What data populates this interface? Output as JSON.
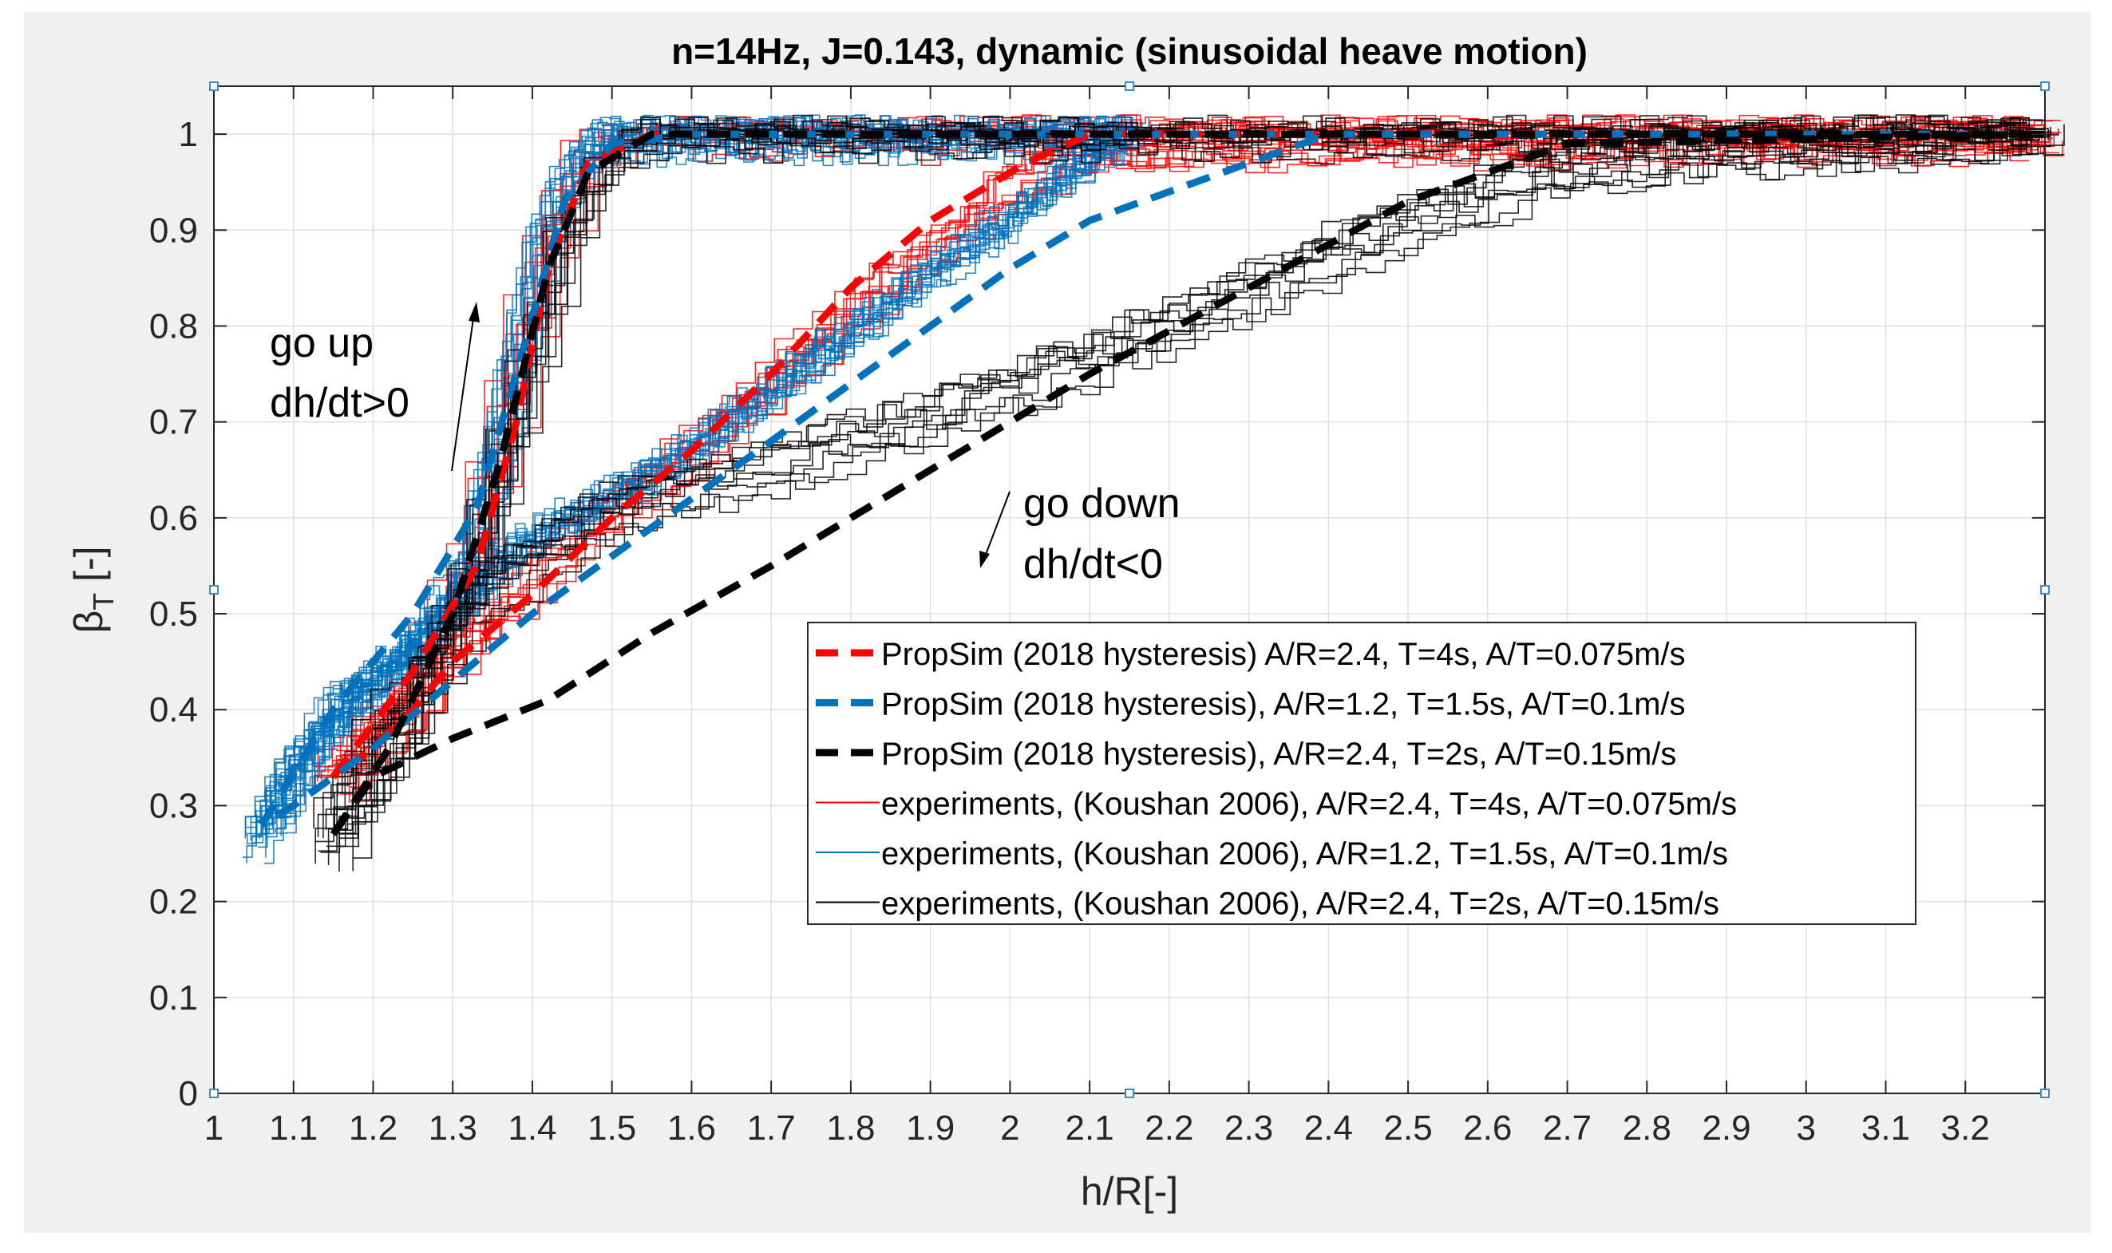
{
  "chart_data": {
    "type": "line",
    "title": "n=14Hz, J=0.143, dynamic (sinusoidal heave motion)",
    "xlabel": "h/R[-]",
    "ylabel": "βT [-]",
    "ylabel_main": "β",
    "ylabel_sub": "T",
    "ylabel_unit": " [-]",
    "xlim": [
      1.0,
      3.3
    ],
    "ylim": [
      0.0,
      1.05
    ],
    "xticks": [
      1,
      1.1,
      1.2,
      1.3,
      1.4,
      1.5,
      1.6,
      1.7,
      1.8,
      1.9,
      2,
      2.1,
      2.2,
      2.3,
      2.4,
      2.5,
      2.6,
      2.7,
      2.8,
      2.9,
      3,
      3.1,
      3.2
    ],
    "xtick_labels": [
      "1",
      "1.1",
      "1.2",
      "1.3",
      "1.4",
      "1.5",
      "1.6",
      "1.7",
      "1.8",
      "1.9",
      "2",
      "2.1",
      "2.2",
      "2.3",
      "2.4",
      "2.5",
      "2.6",
      "2.7",
      "2.8",
      "2.9",
      "3",
      "3.1",
      "3.2"
    ],
    "yticks": [
      0,
      0.1,
      0.2,
      0.3,
      0.4,
      0.5,
      0.6,
      0.7,
      0.8,
      0.9,
      1
    ],
    "ytick_labels": [
      "0",
      "0.1",
      "0.2",
      "0.3",
      "0.4",
      "0.5",
      "0.6",
      "0.7",
      "0.8",
      "0.9",
      "1"
    ],
    "grid": true,
    "legend_position": "center-right",
    "colors": {
      "red": "#ff0000",
      "blue": "#0072bd",
      "black": "#000000",
      "grid": "#dfdfdf",
      "frame_bg": "#f0f0f0"
    },
    "annotations": {
      "up_line1": "go up",
      "up_line2": "dh/dt>0",
      "down_line1": "go down",
      "down_line2": "dh/dt<0"
    },
    "series": [
      {
        "name": "PropSim (2018 hysteresis) A/R=2.4, T=4s, A/T=0.075m/s",
        "kind": "sim",
        "color": "#ff0000",
        "style": "dashed",
        "up": [
          [
            1.15,
            0.33
          ],
          [
            1.25,
            0.44
          ],
          [
            1.33,
            0.55
          ],
          [
            1.38,
            0.7
          ],
          [
            1.42,
            0.86
          ],
          [
            1.47,
            0.97
          ],
          [
            1.55,
            1.0
          ],
          [
            3.3,
            1.0
          ]
        ],
        "down": [
          [
            3.3,
            1.0
          ],
          [
            2.1,
            1.0
          ],
          [
            2.02,
            0.97
          ],
          [
            1.9,
            0.91
          ],
          [
            1.8,
            0.84
          ],
          [
            1.7,
            0.75
          ],
          [
            1.6,
            0.67
          ],
          [
            1.5,
            0.6
          ],
          [
            1.4,
            0.52
          ],
          [
            1.3,
            0.45
          ],
          [
            1.25,
            0.4
          ],
          [
            1.2,
            0.36
          ],
          [
            1.15,
            0.33
          ]
        ]
      },
      {
        "name": "PropSim (2018 hysteresis), A/R=1.2, T=1.5s, A/T=0.1m/s",
        "kind": "sim",
        "color": "#0072bd",
        "style": "dashed",
        "up": [
          [
            1.06,
            0.28
          ],
          [
            1.15,
            0.4
          ],
          [
            1.25,
            0.5
          ],
          [
            1.33,
            0.61
          ],
          [
            1.39,
            0.78
          ],
          [
            1.44,
            0.93
          ],
          [
            1.5,
            0.99
          ],
          [
            1.6,
            1.0
          ],
          [
            3.3,
            1.0
          ]
        ],
        "down": [
          [
            3.3,
            1.0
          ],
          [
            2.4,
            1.0
          ],
          [
            2.3,
            0.97
          ],
          [
            2.2,
            0.94
          ],
          [
            2.1,
            0.91
          ],
          [
            2.0,
            0.86
          ],
          [
            1.9,
            0.8
          ],
          [
            1.8,
            0.74
          ],
          [
            1.7,
            0.68
          ],
          [
            1.6,
            0.62
          ],
          [
            1.5,
            0.56
          ],
          [
            1.4,
            0.5
          ],
          [
            1.3,
            0.43
          ],
          [
            1.2,
            0.36
          ],
          [
            1.1,
            0.3
          ],
          [
            1.06,
            0.28
          ]
        ]
      },
      {
        "name": "PropSim (2018 hysteresis), A/R=2.4, T=2s, A/T=0.15m/s",
        "kind": "sim",
        "color": "#000000",
        "style": "dashed",
        "up": [
          [
            1.15,
            0.27
          ],
          [
            1.22,
            0.36
          ],
          [
            1.3,
            0.5
          ],
          [
            1.36,
            0.66
          ],
          [
            1.42,
            0.86
          ],
          [
            1.47,
            0.96
          ],
          [
            1.55,
            1.0
          ],
          [
            3.3,
            1.0
          ]
        ],
        "down": [
          [
            3.3,
            1.0
          ],
          [
            2.7,
            0.99
          ],
          [
            2.5,
            0.93
          ],
          [
            2.3,
            0.84
          ],
          [
            2.1,
            0.75
          ],
          [
            1.9,
            0.65
          ],
          [
            1.7,
            0.55
          ],
          [
            1.55,
            0.48
          ],
          [
            1.42,
            0.41
          ],
          [
            1.3,
            0.37
          ],
          [
            1.2,
            0.33
          ],
          [
            1.15,
            0.27
          ]
        ]
      },
      {
        "name": "experiments, (Koushan 2006), A/R=2.4, T=4s, A/T=0.075m/s",
        "kind": "exp",
        "color": "#ff0000",
        "style": "solid",
        "cycles": 10,
        "up": [
          [
            1.15,
            0.33
          ],
          [
            1.25,
            0.43
          ],
          [
            1.32,
            0.56
          ],
          [
            1.37,
            0.74
          ],
          [
            1.41,
            0.88
          ],
          [
            1.46,
            0.97
          ],
          [
            1.52,
            1.0
          ],
          [
            3.3,
            1.0
          ]
        ],
        "down": [
          [
            3.3,
            1.0
          ],
          [
            2.15,
            0.99
          ],
          [
            2.07,
            0.97
          ],
          [
            2.0,
            0.94
          ],
          [
            1.9,
            0.87
          ],
          [
            1.8,
            0.81
          ],
          [
            1.7,
            0.73
          ],
          [
            1.6,
            0.66
          ],
          [
            1.5,
            0.6
          ],
          [
            1.4,
            0.53
          ],
          [
            1.3,
            0.45
          ],
          [
            1.2,
            0.36
          ],
          [
            1.15,
            0.33
          ]
        ]
      },
      {
        "name": "experiments, (Koushan 2006), A/R=1.2, T=1.5s, A/T=0.1m/s",
        "kind": "exp",
        "color": "#0072bd",
        "style": "solid",
        "cycles": 16,
        "up": [
          [
            1.06,
            0.27
          ],
          [
            1.15,
            0.41
          ],
          [
            1.25,
            0.47
          ],
          [
            1.32,
            0.55
          ],
          [
            1.37,
            0.74
          ],
          [
            1.41,
            0.9
          ],
          [
            1.46,
            0.99
          ],
          [
            1.52,
            1.0
          ],
          [
            2.15,
            1.0
          ]
        ],
        "down": [
          [
            2.15,
            1.0
          ],
          [
            2.1,
            0.97
          ],
          [
            2.0,
            0.91
          ],
          [
            1.9,
            0.85
          ],
          [
            1.8,
            0.79
          ],
          [
            1.7,
            0.73
          ],
          [
            1.6,
            0.67
          ],
          [
            1.5,
            0.62
          ],
          [
            1.4,
            0.58
          ],
          [
            1.3,
            0.5
          ],
          [
            1.2,
            0.42
          ],
          [
            1.1,
            0.34
          ],
          [
            1.06,
            0.27
          ]
        ]
      },
      {
        "name": "experiments, (Koushan 2006), A/R=2.4, T=2s, A/T=0.15m/s",
        "kind": "exp",
        "color": "#000000",
        "style": "solid",
        "cycles": 10,
        "up": [
          [
            1.15,
            0.26
          ],
          [
            1.25,
            0.4
          ],
          [
            1.32,
            0.55
          ],
          [
            1.38,
            0.73
          ],
          [
            1.43,
            0.88
          ],
          [
            1.48,
            0.97
          ],
          [
            1.55,
            1.0
          ],
          [
            3.3,
            1.0
          ]
        ],
        "down": [
          [
            3.3,
            1.0
          ],
          [
            2.9,
            0.98
          ],
          [
            2.7,
            0.96
          ],
          [
            2.5,
            0.9
          ],
          [
            2.3,
            0.83
          ],
          [
            2.1,
            0.76
          ],
          [
            1.9,
            0.7
          ],
          [
            1.7,
            0.65
          ],
          [
            1.5,
            0.6
          ],
          [
            1.35,
            0.52
          ],
          [
            1.25,
            0.4
          ],
          [
            1.15,
            0.26
          ]
        ]
      }
    ]
  }
}
